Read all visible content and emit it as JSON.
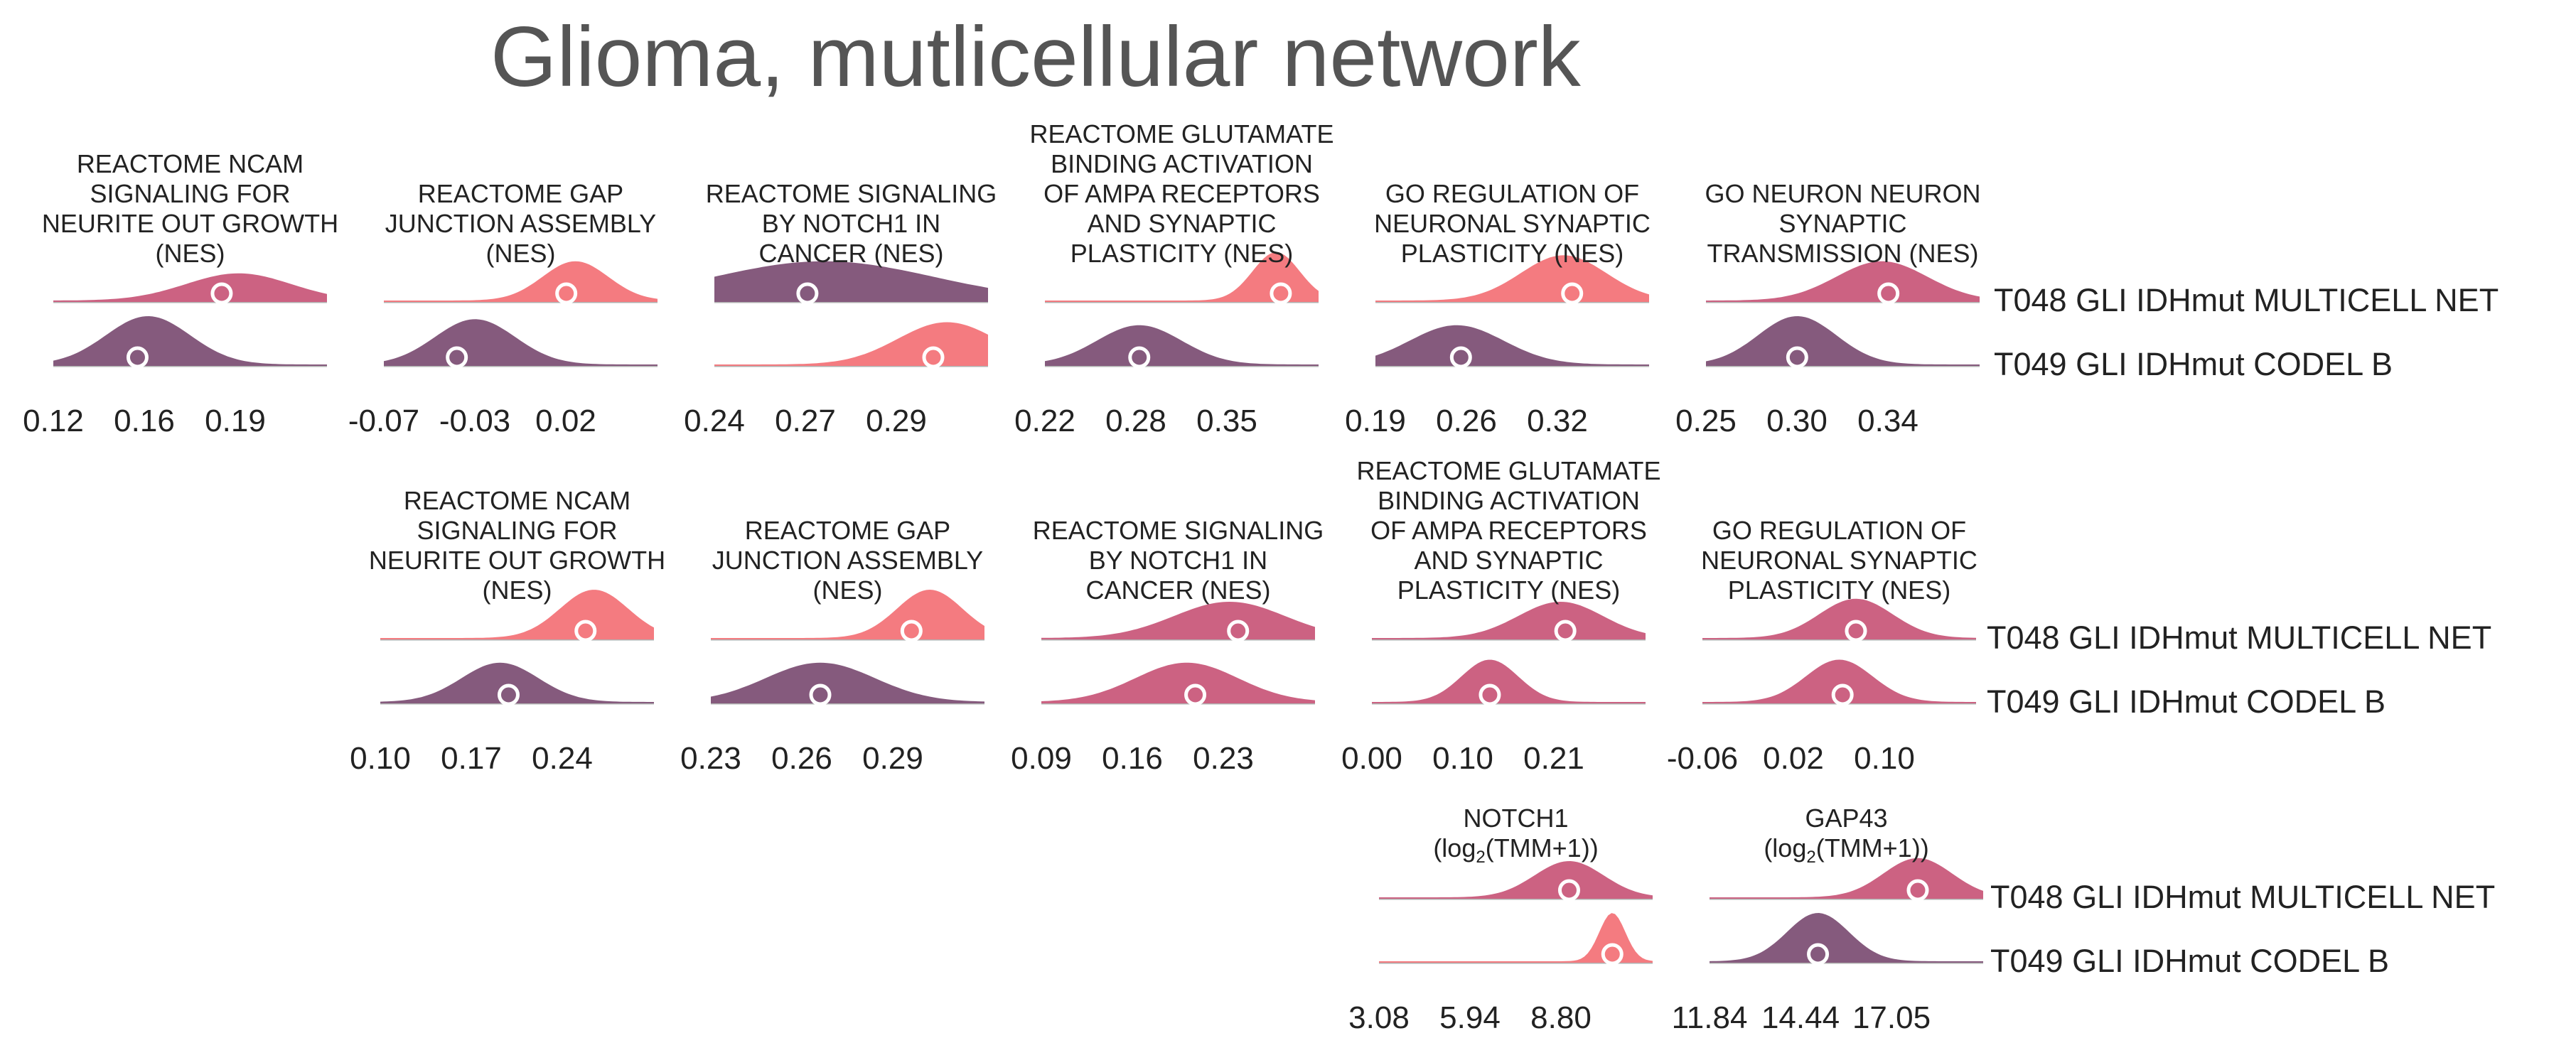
{
  "title": "Glioma, mutlicellular network",
  "colors": {
    "text": "#222222",
    "title": "#555555",
    "baseline": "#b0b0b0",
    "marker": "#ffffff",
    "low": "#855a7d",
    "mid": "#cc6282",
    "high": "#f47b80"
  },
  "chart_data": [
    {
      "type": "ridgeline",
      "title": "REACTOME NCAM SIGNALING FOR NEURITE OUT GROWTH (NES)",
      "title_lines": [
        "REACTOME NCAM",
        "SIGNALING FOR",
        "NEURITE OUT GROWTH",
        "(NES)"
      ],
      "xticks": [
        "0.12",
        "0.16",
        "0.19"
      ],
      "xrange": [
        0.09,
        0.22
      ],
      "series": [
        {
          "name": "T048 GLI IDHmut MULTICELL NET",
          "median": 0.17,
          "peak": 0.178,
          "spread": 0.025,
          "fill": "mid",
          "height": 0.45
        },
        {
          "name": "T049 GLI  IDHmut CODEL B",
          "median": 0.13,
          "peak": 0.135,
          "spread": 0.02,
          "fill": "low",
          "height": 0.8
        }
      ]
    },
    {
      "type": "ridgeline",
      "title": "REACTOME GAP JUNCTION ASSEMBLY (NES)",
      "title_lines": [
        "REACTOME GAP",
        "JUNCTION ASSEMBLY",
        "(NES)"
      ],
      "xticks": [
        "-0.07",
        "-0.03",
        "0.02"
      ],
      "xrange": [
        -0.1,
        0.05
      ],
      "series": [
        {
          "name": "T048 GLI IDHmut MULTICELL NET",
          "median": 0.0,
          "peak": 0.005,
          "spread": 0.018,
          "fill": "high",
          "height": 0.65
        },
        {
          "name": "T049 GLI  IDHmut CODEL B",
          "median": -0.06,
          "peak": -0.05,
          "spread": 0.022,
          "fill": "low",
          "height": 0.75
        }
      ]
    },
    {
      "type": "ridgeline",
      "title": "REACTOME SIGNALING BY NOTCH1 IN CANCER (NES)",
      "title_lines": [
        "REACTOME SIGNALING",
        "BY NOTCH1 IN",
        "CANCER (NES)"
      ],
      "xticks": [
        "0.24",
        "0.27",
        "0.29"
      ],
      "xrange": [
        0.22,
        0.32
      ],
      "series": [
        {
          "name": "T048 GLI IDHmut MULTICELL NET",
          "median": 0.254,
          "peak": 0.26,
          "spread": 0.04,
          "fill": "low",
          "height": 0.65
        },
        {
          "name": "T049 GLI  IDHmut CODEL B",
          "median": 0.3,
          "peak": 0.305,
          "spread": 0.018,
          "fill": "high",
          "height": 0.7
        }
      ]
    },
    {
      "type": "ridgeline",
      "title": "REACTOME GLUTAMATE BINDING ACTIVATION OF AMPA RECEPTORS AND SYNAPTIC PLASTICITY (NES)",
      "title_lines": [
        "REACTOME GLUTAMATE",
        "BINDING ACTIVATION",
        "OF AMPA RECEPTORS",
        "AND SYNAPTIC",
        "PLASTICITY (NES)"
      ],
      "xticks": [
        "0.22",
        "0.28",
        "0.35"
      ],
      "xrange": [
        0.18,
        0.47
      ],
      "series": [
        {
          "name": "T048 GLI IDHmut MULTICELL NET",
          "median": 0.43,
          "peak": 0.425,
          "spread": 0.025,
          "fill": "high",
          "height": 0.8
        },
        {
          "name": "T049 GLI  IDHmut CODEL B",
          "median": 0.28,
          "peak": 0.28,
          "spread": 0.045,
          "fill": "low",
          "height": 0.65
        }
      ]
    },
    {
      "type": "ridgeline",
      "title": "GO REGULATION OF NEURONAL SYNAPTIC PLASTICITY (NES)",
      "title_lines": [
        "GO REGULATION OF",
        "NEURONAL SYNAPTIC",
        "PLASTICITY (NES)"
      ],
      "xticks": [
        "0.19",
        "0.26",
        "0.32"
      ],
      "xrange": [
        0.14,
        0.46
      ],
      "series": [
        {
          "name": "T048 GLI IDHmut MULTICELL NET",
          "median": 0.37,
          "peak": 0.36,
          "spread": 0.05,
          "fill": "high",
          "height": 0.75
        },
        {
          "name": "T049 GLI  IDHmut CODEL B",
          "median": 0.24,
          "peak": 0.235,
          "spread": 0.055,
          "fill": "low",
          "height": 0.65
        }
      ]
    },
    {
      "type": "ridgeline",
      "title": "GO NEURON NEURON SYNAPTIC TRANSMISSION (NES)",
      "title_lines": [
        "GO NEURON NEURON",
        "SYNAPTIC",
        "TRANSMISSION (NES)"
      ],
      "xticks": [
        "0.25",
        "0.30",
        "0.34"
      ],
      "xrange": [
        0.21,
        0.42
      ],
      "series": [
        {
          "name": "T048 GLI IDHmut MULTICELL NET",
          "median": 0.35,
          "peak": 0.345,
          "spread": 0.035,
          "fill": "mid",
          "height": 0.65
        },
        {
          "name": "T049 GLI  IDHmut CODEL B",
          "median": 0.28,
          "peak": 0.28,
          "spread": 0.03,
          "fill": "low",
          "height": 0.8
        }
      ]
    },
    {
      "type": "ridgeline",
      "title": "REACTOME NCAM SIGNALING FOR NEURITE OUT GROWTH (NES)",
      "title_lines": [
        "REACTOME NCAM",
        "SIGNALING FOR",
        "NEURITE OUT GROWTH",
        "(NES)"
      ],
      "xticks": [
        "0.10",
        "0.17",
        "0.24"
      ],
      "xrange": [
        0.05,
        0.37
      ],
      "series": [
        {
          "name": "T048 GLI IDHmut MULTICELL NET",
          "median": 0.29,
          "peak": 0.3,
          "spread": 0.04,
          "fill": "high",
          "height": 0.8
        },
        {
          "name": "T049 GLI  IDHmut CODEL B",
          "median": 0.2,
          "peak": 0.19,
          "spread": 0.045,
          "fill": "low",
          "height": 0.65
        }
      ]
    },
    {
      "type": "ridgeline",
      "title": "REACTOME GAP JUNCTION ASSEMBLY (NES)",
      "title_lines": [
        "REACTOME GAP",
        "JUNCTION ASSEMBLY",
        "(NES)"
      ],
      "xticks": [
        "0.23",
        "0.26",
        "0.29"
      ],
      "xrange": [
        0.21,
        0.36
      ],
      "series": [
        {
          "name": "T048 GLI IDHmut MULTICELL NET",
          "median": 0.32,
          "peak": 0.33,
          "spread": 0.018,
          "fill": "high",
          "height": 0.8
        },
        {
          "name": "T049 GLI  IDHmut CODEL B",
          "median": 0.27,
          "peak": 0.27,
          "spread": 0.03,
          "fill": "low",
          "height": 0.65
        }
      ]
    },
    {
      "type": "ridgeline",
      "title": "REACTOME SIGNALING BY NOTCH1 IN CANCER (NES)",
      "title_lines": [
        "REACTOME SIGNALING",
        "BY NOTCH1 IN",
        "CANCER (NES)"
      ],
      "xticks": [
        "0.09",
        "0.16",
        "0.23"
      ],
      "xrange": [
        0.05,
        0.37
      ],
      "series": [
        {
          "name": "T048 GLI IDHmut MULTICELL NET",
          "median": 0.28,
          "peak": 0.27,
          "spread": 0.065,
          "fill": "mid",
          "height": 0.6
        },
        {
          "name": "T049 GLI  IDHmut CODEL B",
          "median": 0.23,
          "peak": 0.22,
          "spread": 0.06,
          "fill": "mid",
          "height": 0.65
        }
      ]
    },
    {
      "type": "ridgeline",
      "title": "REACTOME GLUTAMATE BINDING ACTIVATION OF AMPA RECEPTORS AND SYNAPTIC PLASTICITY (NES)",
      "title_lines": [
        "REACTOME GLUTAMATE",
        "BINDING ACTIVATION",
        "OF AMPA RECEPTORS",
        "AND SYNAPTIC",
        "PLASTICITY (NES)"
      ],
      "xticks": [
        "0.00",
        "0.10",
        "0.21"
      ],
      "xrange": [
        -0.06,
        0.52
      ],
      "series": [
        {
          "name": "T048 GLI IDHmut MULTICELL NET",
          "median": 0.35,
          "peak": 0.34,
          "spread": 0.09,
          "fill": "mid",
          "height": 0.6
        },
        {
          "name": "T049 GLI  IDHmut CODEL B",
          "median": 0.19,
          "peak": 0.19,
          "spread": 0.06,
          "fill": "mid",
          "height": 0.7
        }
      ]
    },
    {
      "type": "ridgeline",
      "title": "GO REGULATION OF NEURONAL SYNAPTIC PLASTICITY (NES)",
      "title_lines": [
        "GO REGULATION OF",
        "NEURONAL SYNAPTIC",
        "PLASTICITY (NES)"
      ],
      "xticks": [
        "-0.06",
        "0.02",
        "0.10"
      ],
      "xrange": [
        -0.11,
        0.3
      ],
      "series": [
        {
          "name": "T048 GLI IDHmut MULTICELL NET",
          "median": 0.12,
          "peak": 0.12,
          "spread": 0.055,
          "fill": "mid",
          "height": 0.65
        },
        {
          "name": "T049 GLI  IDHmut CODEL B",
          "median": 0.1,
          "peak": 0.095,
          "spread": 0.05,
          "fill": "mid",
          "height": 0.7
        }
      ]
    },
    {
      "type": "ridgeline",
      "title": "NOTCH1 (log2(TMM+1))",
      "title_lines": [
        "NOTCH1",
        "(log",
        "2",
        "(TMM+1))"
      ],
      "xticks": [
        "3.08",
        "5.94",
        "8.80"
      ],
      "xrange": [
        2.0,
        11.5
      ],
      "series": [
        {
          "name": "T048 GLI IDHmut MULTICELL NET",
          "median": 8.6,
          "peak": 8.6,
          "spread": 1.2,
          "fill": "mid",
          "height": 0.6
        },
        {
          "name": "T049 GLI  IDHmut CODEL B",
          "median": 10.1,
          "peak": 10.1,
          "spread": 0.45,
          "fill": "high",
          "height": 0.8
        }
      ]
    },
    {
      "type": "ridgeline",
      "title": "GAP43 (log2(TMM+1))",
      "title_lines": [
        "GAP43",
        "(log",
        "2",
        "(TMM+1))"
      ],
      "xticks": [
        "11.84",
        "14.44",
        "17.05"
      ],
      "xrange": [
        10.85,
        18.8
      ],
      "series": [
        {
          "name": "T048 GLI IDHmut MULTICELL NET",
          "median": 16.9,
          "peak": 16.9,
          "spread": 1.0,
          "fill": "mid",
          "height": 0.65
        },
        {
          "name": "T049 GLI  IDHmut CODEL B",
          "median": 14.0,
          "peak": 14.0,
          "spread": 0.9,
          "fill": "low",
          "height": 0.8
        }
      ]
    }
  ],
  "row_labels": [
    {
      "top": "T048 GLI IDHmut MULTICELL NET",
      "bottom": "T049 GLI  IDHmut CODEL B"
    },
    {
      "top": "T048 GLI IDHmut MULTICELL NET",
      "bottom": "T049 GLI  IDHmut CODEL B"
    },
    {
      "top": "T048 GLI IDHmut MULTICELL NET",
      "bottom": "T049 GLI  IDHmut CODEL B"
    }
  ]
}
